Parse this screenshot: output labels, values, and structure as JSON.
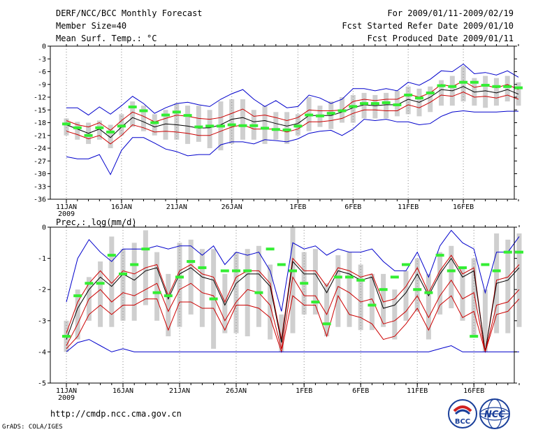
{
  "header": {
    "title": "DERF/NCC/BCC Monthly Forecast",
    "member_size": "Member Size=40",
    "variable": "Mean Surf. Temp.: °C",
    "period": "For 2009/01/11-2009/02/19",
    "started": "Fcst Started Refer Date 2009/01/10",
    "produced": "Fcst Produced Date 2009/01/11"
  },
  "footer": {
    "url": "http://cmdp.ncc.cma.gov.cn",
    "grads": "GrADS: COLA/IGES",
    "logo_bcc": "BCC",
    "logo_ncc": "NCC"
  },
  "chart_data": [
    {
      "type": "line",
      "title": "Mean Surf. Temp.: °C",
      "ylim": [
        -36,
        0
      ],
      "yticks": [
        "0",
        "-3",
        "-6",
        "-9",
        "-12",
        "-15",
        "-18",
        "-21",
        "-24",
        "-27",
        "-30",
        "-33",
        "-36"
      ],
      "xticks": [
        {
          "day": 0,
          "label": "11JAN",
          "sub": "2009"
        },
        {
          "day": 5,
          "label": "16JAN"
        },
        {
          "day": 10,
          "label": "21JAN"
        },
        {
          "day": 15,
          "label": "26JAN"
        },
        {
          "day": 21,
          "label": "1FEB"
        },
        {
          "day": 26,
          "label": "6FEB"
        },
        {
          "day": 31,
          "label": "11FEB"
        },
        {
          "day": 36,
          "label": "16FEB"
        }
      ],
      "series": [
        {
          "name": "max",
          "color": "#0000cc",
          "values": [
            -14.5,
            -14.5,
            -16.2,
            -14.3,
            -16,
            -14,
            -11.8,
            -13.5,
            -15.8,
            -14.5,
            -13.5,
            -13.2,
            -13.8,
            -14.2,
            -12.5,
            -11.2,
            -10.2,
            -12.5,
            -14.2,
            -12.8,
            -14.5,
            -14.2,
            -11.5,
            -12.2,
            -13.5,
            -12.5,
            -10,
            -10,
            -10.5,
            -10,
            -10.5,
            -8.5,
            -9.2,
            -7.8,
            -5.8,
            -6,
            -4.2,
            -6.5,
            -6.2,
            -6.8,
            -5.8,
            -7.3
          ]
        },
        {
          "name": "upper",
          "color": "#cc0000",
          "values": [
            -17.5,
            -18.5,
            -19,
            -18,
            -19.8,
            -17.5,
            -15.5,
            -16.5,
            -17.8,
            -17,
            -16.2,
            -16.5,
            -17,
            -17.2,
            -16.8,
            -15.8,
            -14.8,
            -16.5,
            -16.2,
            -16.8,
            -17.5,
            -16.8,
            -15,
            -15.2,
            -15.2,
            -15,
            -13,
            -12.5,
            -12.8,
            -12.5,
            -12.5,
            -11.3,
            -12,
            -11,
            -9,
            -9.5,
            -8.2,
            -9.7,
            -9.2,
            -9.8,
            -9,
            -10.2
          ]
        },
        {
          "name": "mean",
          "color": "#000000",
          "values": [
            -18.5,
            -19.5,
            -20.5,
            -19.5,
            -21.5,
            -19,
            -16.8,
            -17.8,
            -19,
            -18.3,
            -18.5,
            -18.8,
            -19.3,
            -19.2,
            -18.5,
            -17.2,
            -16.8,
            -17.8,
            -17.5,
            -18.2,
            -18.8,
            -18.2,
            -16.3,
            -16.3,
            -16.3,
            -15.5,
            -14.5,
            -13.8,
            -14,
            -13.8,
            -13.8,
            -12.5,
            -13.2,
            -12,
            -10.2,
            -10.5,
            -9.5,
            -10.8,
            -10.5,
            -11,
            -10.2,
            -11.3
          ]
        },
        {
          "name": "lower",
          "color": "#cc0000",
          "values": [
            -20,
            -20.8,
            -21.8,
            -21,
            -23,
            -21,
            -18.5,
            -19.2,
            -20.2,
            -20,
            -20.2,
            -20.5,
            -21,
            -21,
            -20,
            -19,
            -18.5,
            -19.5,
            -19.5,
            -19.5,
            -20.2,
            -19.5,
            -17.8,
            -17.8,
            -17.5,
            -17,
            -15.8,
            -15,
            -15,
            -15.2,
            -15.2,
            -13.8,
            -14.5,
            -13.2,
            -11.5,
            -11.8,
            -10.8,
            -12,
            -11.8,
            -12.2,
            -11.5,
            -12.5
          ]
        },
        {
          "name": "min",
          "color": "#0000cc",
          "values": [
            -26,
            -26.5,
            -26.5,
            -25.5,
            -30.2,
            -24.5,
            -21.5,
            -21.5,
            -22.8,
            -24.2,
            -24.8,
            -25.8,
            -25.5,
            -25.5,
            -23.2,
            -22.5,
            -22.5,
            -23,
            -22,
            -22.2,
            -22.5,
            -21.8,
            -20.5,
            -20,
            -19.8,
            -21,
            -19.5,
            -17.2,
            -17.5,
            -17.2,
            -17.8,
            -17.8,
            -18.5,
            -18.2,
            -16.5,
            -15.5,
            -15.2,
            -15.5,
            -15.5,
            -15.5,
            -15.3,
            -15.3
          ]
        },
        {
          "name": "obs",
          "color": "#33ee33",
          "values": [
            -18.3,
            -19.2,
            -21,
            -19.2,
            -20.2,
            -18.8,
            -14.3,
            -15.2,
            -18,
            -16.2,
            -15.5,
            -16.3,
            -19,
            -18.8,
            -18.8,
            -18.5,
            -18.7,
            -18.7,
            -19.3,
            -19.6,
            -19.7,
            -18.8,
            -16.2,
            -16.4,
            -15.8,
            -15.2,
            -14.2,
            -13.5,
            -13.5,
            -13.3,
            -13.8,
            -11.5,
            -12.2,
            -11,
            -9.3,
            -9.5,
            -8.5,
            -8.5,
            -9.2,
            -9.5,
            -9.5,
            -9.8
          ]
        }
      ],
      "bars": [
        [
          -21,
          -17
        ],
        [
          -22,
          -17.8
        ],
        [
          -23,
          -18
        ],
        [
          -22,
          -17.5
        ],
        [
          -24,
          -18.5
        ],
        [
          -21,
          -16
        ],
        [
          -19,
          -13
        ],
        [
          -20,
          -14
        ],
        [
          -21,
          -16
        ],
        [
          -22,
          -15
        ],
        [
          -22,
          -13.5
        ],
        [
          -23,
          -14
        ],
        [
          -22.5,
          -14
        ],
        [
          -24,
          -15
        ],
        [
          -24.5,
          -13
        ],
        [
          -23,
          -12.5
        ],
        [
          -22,
          -12.5
        ],
        [
          -22,
          -15
        ],
        [
          -23,
          -14
        ],
        [
          -22,
          -15.5
        ],
        [
          -23,
          -15.5
        ],
        [
          -21,
          -16
        ],
        [
          -20,
          -12
        ],
        [
          -19,
          -14
        ],
        [
          -19.5,
          -13
        ],
        [
          -18,
          -12
        ],
        [
          -18,
          -11.5
        ],
        [
          -17,
          -11
        ],
        [
          -17,
          -11.5
        ],
        [
          -17,
          -11
        ],
        [
          -16.5,
          -10.5
        ],
        [
          -16,
          -9.5
        ],
        [
          -16.5,
          -10
        ],
        [
          -15.5,
          -9.5
        ],
        [
          -14,
          -8
        ],
        [
          -14,
          -7
        ],
        [
          -13,
          -4.8
        ],
        [
          -14,
          -7.5
        ],
        [
          -14.5,
          -7
        ],
        [
          -14,
          -7.5
        ],
        [
          -13,
          -7
        ],
        [
          -14,
          -8.5
        ]
      ]
    },
    {
      "type": "line",
      "title": "Prec.: log(mm/d)",
      "ylim": [
        -5,
        0
      ],
      "yticks": [
        "0",
        "-1",
        "-2",
        "-3",
        "-4",
        "-5"
      ],
      "xticks": [
        {
          "day": 0,
          "label": "11JAN",
          "sub": "2009"
        },
        {
          "day": 5,
          "label": "16JAN"
        },
        {
          "day": 10,
          "label": "21JAN"
        },
        {
          "day": 15,
          "label": "26JAN"
        },
        {
          "day": 21,
          "label": "1FEB"
        },
        {
          "day": 26,
          "label": "6FEB"
        },
        {
          "day": 31,
          "label": "11FEB"
        },
        {
          "day": 36,
          "label": "16FEB"
        }
      ],
      "series": [
        {
          "name": "max",
          "color": "#0000cc",
          "values": [
            -2.4,
            -1,
            -0.4,
            -0.8,
            -1.1,
            -0.7,
            -0.7,
            -0.7,
            -0.6,
            -0.7,
            -0.6,
            -0.6,
            -0.9,
            -0.6,
            -1.2,
            -0.8,
            -0.9,
            -0.8,
            -1.4,
            -2.7,
            -0.5,
            -0.7,
            -0.6,
            -0.9,
            -0.7,
            -0.8,
            -0.8,
            -0.7,
            -1.1,
            -1.4,
            -1.4,
            -0.8,
            -1.6,
            -0.6,
            -0.1,
            -0.5,
            -0.7,
            -2.1,
            -0.8,
            -0.8,
            -0.3
          ]
        },
        {
          "name": "upper",
          "color": "#cc0000",
          "values": [
            -3.4,
            -2.4,
            -1.8,
            -1.4,
            -1.8,
            -1.4,
            -1.5,
            -1.3,
            -1.2,
            -2.2,
            -1.4,
            -1.2,
            -1.5,
            -1.6,
            -2.4,
            -1.6,
            -1.4,
            -1.4,
            -1.8,
            -3.6,
            -1,
            -1.4,
            -1.4,
            -1.9,
            -1.3,
            -1.4,
            -1.6,
            -1.5,
            -2.4,
            -2.3,
            -1.9,
            -1.3,
            -2.1,
            -1.4,
            -0.9,
            -1.5,
            -1.3,
            -4,
            -1.7,
            -1.6,
            -1.2
          ]
        },
        {
          "name": "mean",
          "color": "#000000",
          "values": [
            -3.6,
            -2.6,
            -2,
            -1.6,
            -1.9,
            -1.5,
            -1.7,
            -1.4,
            -1.3,
            -2.3,
            -1.5,
            -1.3,
            -1.6,
            -1.7,
            -2.5,
            -1.8,
            -1.5,
            -1.5,
            -1.9,
            -3.7,
            -1.1,
            -1.5,
            -1.5,
            -2.1,
            -1.4,
            -1.5,
            -1.7,
            -1.6,
            -2.6,
            -2.5,
            -2.1,
            -1.5,
            -2.2,
            -1.5,
            -1,
            -1.6,
            -1.4,
            -4,
            -1.8,
            -1.7,
            -1.3
          ]
        },
        {
          "name": "lower",
          "color": "#cc0000",
          "values": [
            -3.8,
            -3.1,
            -2.3,
            -2,
            -2.4,
            -2.1,
            -2.2,
            -2,
            -1.8,
            -2.7,
            -2,
            -1.8,
            -2.1,
            -2.2,
            -3,
            -2.4,
            -2,
            -2.1,
            -2.5,
            -3.9,
            -1.6,
            -2.2,
            -2.2,
            -2.8,
            -1.9,
            -2.1,
            -2.4,
            -2.3,
            -3.1,
            -3,
            -2.7,
            -2.2,
            -2.9,
            -2.2,
            -1.7,
            -2.3,
            -2.1,
            -4,
            -2.5,
            -2.4,
            -2
          ]
        },
        {
          "name": "lower2",
          "color": "#cc0000",
          "values": [
            -3.9,
            -3.5,
            -2.8,
            -2.5,
            -2.8,
            -2.5,
            -2.5,
            -2.3,
            -2.3,
            -3.3,
            -2.4,
            -2.4,
            -2.6,
            -2.6,
            -3.3,
            -2.5,
            -2.5,
            -2.6,
            -2.9,
            -4,
            -2.2,
            -2.5,
            -2.5,
            -3.5,
            -2.2,
            -2.8,
            -2.9,
            -3.1,
            -3.6,
            -3.5,
            -3.1,
            -2.6,
            -3.3,
            -2.5,
            -2.2,
            -2.9,
            -2.7,
            -4,
            -2.8,
            -2.7,
            -2.3
          ]
        },
        {
          "name": "min",
          "color": "#0000cc",
          "values": [
            -4,
            -3.7,
            -3.6,
            -3.8,
            -4,
            -3.9,
            -4,
            -4,
            -4,
            -4,
            -4,
            -4,
            -4,
            -4,
            -4,
            -4,
            -4,
            -4,
            -4,
            -4,
            -4,
            -4,
            -4,
            -4,
            -4,
            -4,
            -4,
            -4,
            -4,
            -4,
            -4,
            -4,
            -4,
            -3.9,
            -3.8,
            -4,
            -4,
            -4,
            -4,
            -4,
            -4
          ]
        },
        {
          "name": "obs",
          "color": "#33ee33",
          "values": [
            -3.5,
            -2.2,
            -1.8,
            -1.8,
            -0.9,
            -1.5,
            -1.2,
            -0.7,
            -2.1,
            -2.2,
            -1.6,
            -1.1,
            -1.3,
            -2.3,
            -1.4,
            -1.4,
            -1.4,
            -2.1,
            -0.7,
            -1.2,
            -1.4,
            -1.8,
            -2.4,
            -3.1,
            -1.6,
            -1.6,
            -1.7,
            -2.5,
            -2,
            -1.6,
            -1.2,
            -2,
            -2.1,
            -0.9,
            -1.4,
            -1.3,
            -3.5,
            -1.2,
            -1.4,
            -0.8,
            -0.8
          ]
        }
      ],
      "bars": [
        [
          -4,
          -3
        ],
        [
          -3.6,
          -2
        ],
        [
          -3,
          -1.6
        ],
        [
          -3.2,
          -1.1
        ],
        [
          -3.2,
          -0.3
        ],
        [
          -3,
          -0.7
        ],
        [
          -3,
          -0.5
        ],
        [
          -2.5,
          -0.1
        ],
        [
          -3,
          -0.8
        ],
        [
          -3.5,
          -1.5
        ],
        [
          -3.2,
          -0.5
        ],
        [
          -2.8,
          -0.4
        ],
        [
          -3.2,
          -0.7
        ],
        [
          -3.9,
          -0.7
        ],
        [
          -3.4,
          -1.5
        ],
        [
          -3.4,
          -0.8
        ],
        [
          -3.5,
          -0.7
        ],
        [
          -3.2,
          -0.6
        ],
        [
          -3.6,
          -1.2
        ],
        [
          -4,
          -2.8
        ],
        [
          -3.4,
          0
        ],
        [
          -2.8,
          -0.8
        ],
        [
          -2.8,
          -0.7
        ],
        [
          -3.5,
          -1.8
        ],
        [
          -3.2,
          -0.9
        ],
        [
          -3.2,
          -0.8
        ],
        [
          -3.3,
          -1.2
        ],
        [
          -3.3,
          -1.5
        ],
        [
          -3.2,
          -1.5
        ],
        [
          -3.6,
          -2
        ],
        [
          -3,
          -1.4
        ],
        [
          -2.7,
          -1
        ],
        [
          -3.6,
          -1.5
        ],
        [
          -2.8,
          -0.8
        ],
        [
          -2.6,
          -0.6
        ],
        [
          -3,
          -1.3
        ],
        [
          -3.5,
          -1
        ],
        [
          -4,
          -2
        ],
        [
          -3.4,
          -0.2
        ],
        [
          -3.4,
          -0.4
        ],
        [
          -3.2,
          -0.2
        ]
      ]
    }
  ]
}
